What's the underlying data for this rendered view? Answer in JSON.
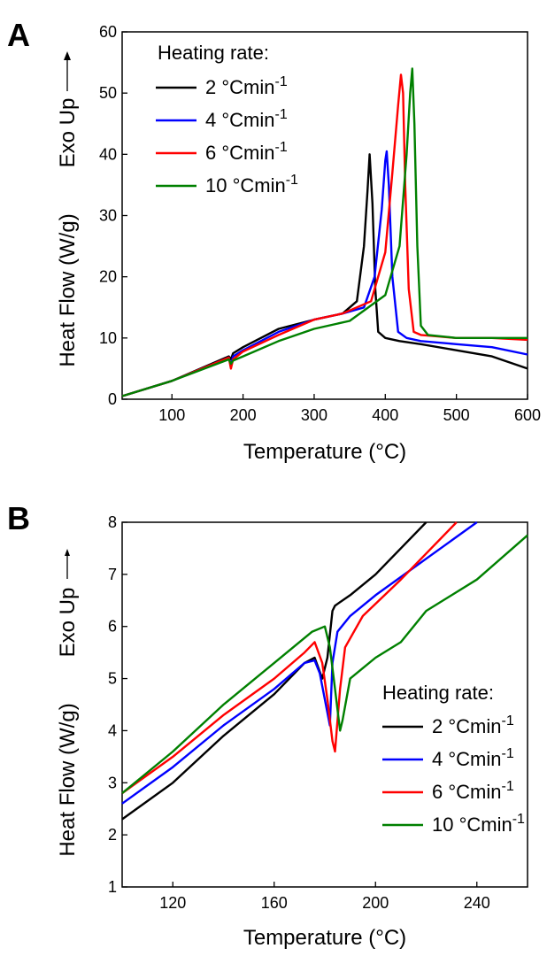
{
  "chart_data": [
    {
      "type": "line",
      "panel_label": "A",
      "xlabel": "Temperature (°C)",
      "ylabel": "Heat Flow (W/g)",
      "ylabel_extra": "Exo Up",
      "xlim": [
        30,
        600
      ],
      "ylim": [
        0,
        60
      ],
      "xticks": [
        100,
        200,
        300,
        400,
        500,
        600
      ],
      "yticks": [
        0,
        10,
        20,
        30,
        40,
        50,
        60
      ],
      "legend_title": "Heating rate:",
      "legend_position": "top-left",
      "series": [
        {
          "name_prefix": "2 ",
          "name_unit": "°Cmin",
          "name_sup": "-1",
          "color": "#000000",
          "x": [
            30,
            100,
            180,
            183,
            186,
            200,
            250,
            300,
            340,
            360,
            370,
            375,
            378,
            382,
            386,
            390,
            400,
            420,
            450,
            500,
            550,
            600
          ],
          "y": [
            0.5,
            3,
            7,
            6.5,
            7.5,
            8.5,
            11.5,
            13,
            14,
            16,
            25,
            34,
            40,
            32,
            18,
            11,
            10,
            9.5,
            9,
            8,
            7,
            5
          ]
        },
        {
          "name_prefix": "4 ",
          "name_unit": "°Cmin",
          "name_sup": "-1",
          "color": "#0000ff",
          "x": [
            30,
            100,
            180,
            183,
            186,
            200,
            250,
            300,
            340,
            370,
            385,
            395,
            400,
            402,
            405,
            410,
            418,
            430,
            450,
            500,
            550,
            600
          ],
          "y": [
            0.5,
            3,
            6.8,
            5.5,
            7,
            8,
            11,
            13,
            14,
            15,
            20,
            31,
            39,
            40.5,
            35,
            20,
            11,
            10,
            9.5,
            9,
            8.5,
            7.3
          ]
        },
        {
          "name_prefix": "6 ",
          "name_unit": "°Cmin",
          "name_sup": "-1",
          "color": "#ff0000",
          "x": [
            30,
            100,
            180,
            183,
            186,
            200,
            250,
            300,
            340,
            380,
            400,
            410,
            418,
            422,
            425,
            428,
            433,
            440,
            450,
            500,
            550,
            600
          ],
          "y": [
            0.5,
            3,
            6.8,
            5,
            6.5,
            7.8,
            10.5,
            13,
            14,
            16,
            24,
            37,
            48,
            53,
            50,
            35,
            18,
            11,
            10.5,
            10,
            10,
            9.7
          ]
        },
        {
          "name_prefix": "10 ",
          "name_unit": "°Cmin",
          "name_sup": "-1",
          "color": "#008000",
          "x": [
            30,
            100,
            180,
            183,
            186,
            200,
            250,
            300,
            350,
            400,
            420,
            430,
            435,
            438,
            441,
            445,
            450,
            460,
            500,
            550,
            600
          ],
          "y": [
            0.5,
            3,
            6.5,
            5.8,
            6.3,
            7,
            9.5,
            11.5,
            12.8,
            17,
            25,
            40,
            50,
            54,
            45,
            25,
            12,
            10.5,
            10,
            10,
            10
          ]
        }
      ]
    },
    {
      "type": "line",
      "panel_label": "B",
      "xlabel": "Temperature (°C)",
      "ylabel": "Heat Flow (W/g)",
      "ylabel_extra": "Exo Up",
      "xlim": [
        100,
        260
      ],
      "ylim": [
        1,
        8
      ],
      "xticks": [
        120,
        160,
        200,
        240
      ],
      "yticks": [
        1,
        2,
        3,
        4,
        5,
        6,
        7,
        8
      ],
      "legend_title": "Heating rate:",
      "legend_position": "bottom-right",
      "series": [
        {
          "name_prefix": "2 ",
          "name_unit": "°Cmin",
          "name_sup": "-1",
          "color": "#000000",
          "x": [
            100,
            120,
            140,
            160,
            172,
            176,
            179,
            181,
            183,
            184,
            190,
            200,
            210,
            220
          ],
          "y": [
            2.3,
            3.0,
            3.9,
            4.7,
            5.3,
            5.4,
            5.0,
            5.4,
            6.3,
            6.4,
            6.6,
            7.0,
            7.5,
            8.0
          ]
        },
        {
          "name_prefix": "4 ",
          "name_unit": "°Cmin",
          "name_sup": "-1",
          "color": "#0000ff",
          "x": [
            100,
            120,
            140,
            160,
            172,
            176,
            178,
            180,
            182,
            183,
            185,
            190,
            200,
            220,
            240
          ],
          "y": [
            2.6,
            3.3,
            4.1,
            4.8,
            5.3,
            5.35,
            5.1,
            4.6,
            4.1,
            5.3,
            5.9,
            6.2,
            6.6,
            7.3,
            8.0
          ]
        },
        {
          "name_prefix": "6 ",
          "name_unit": "°Cmin",
          "name_sup": "-1",
          "color": "#ff0000",
          "x": [
            100,
            120,
            140,
            160,
            172,
            176,
            179,
            181,
            183,
            184,
            186,
            188,
            195,
            210,
            220,
            232
          ],
          "y": [
            2.8,
            3.5,
            4.3,
            5.0,
            5.5,
            5.7,
            5.3,
            4.6,
            3.8,
            3.6,
            4.8,
            5.6,
            6.2,
            6.9,
            7.4,
            8.0
          ]
        },
        {
          "name_prefix": "10 ",
          "name_unit": "°Cmin",
          "name_sup": "-1",
          "color": "#008000",
          "x": [
            100,
            120,
            140,
            160,
            175,
            180,
            182,
            184,
            186,
            187,
            190,
            195,
            200,
            210,
            220,
            240,
            260
          ],
          "y": [
            2.8,
            3.6,
            4.5,
            5.3,
            5.9,
            6.0,
            5.6,
            4.8,
            4.0,
            4.2,
            5.0,
            5.2,
            5.4,
            5.7,
            6.3,
            6.9,
            7.75
          ]
        }
      ]
    }
  ]
}
